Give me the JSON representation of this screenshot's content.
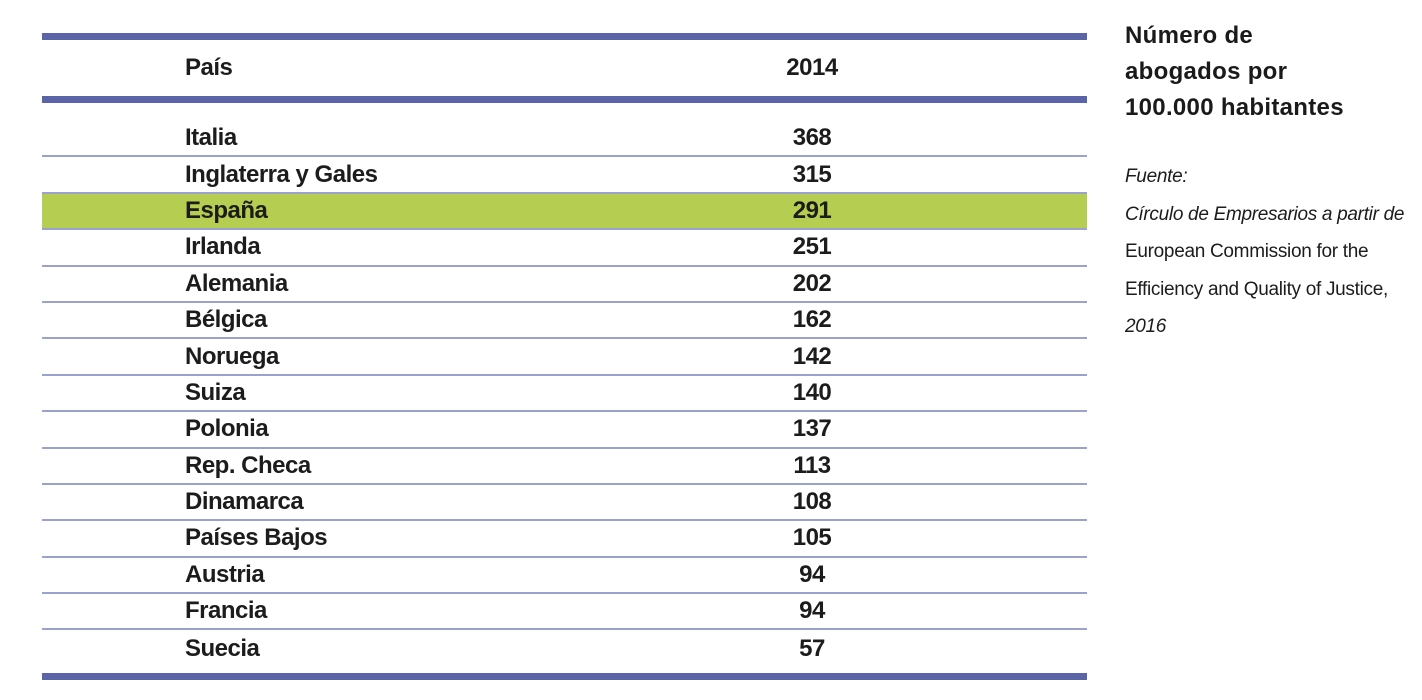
{
  "title": {
    "lines": [
      "Número de",
      "abogados por",
      "100.000 habitantes"
    ],
    "full": "Número de abogados por 100.000 habitantes"
  },
  "source": {
    "lines": [
      {
        "text": "Fuente:",
        "style": "italic"
      },
      {
        "text": "Círculo de Empresarios a partir de",
        "style": "italic"
      },
      {
        "text": "European Commission for the",
        "style": "normal"
      },
      {
        "text": "Efficiency and Quality of Justice,",
        "style": "normal"
      },
      {
        "text": "2016",
        "style": "italic"
      }
    ]
  },
  "table": {
    "columns": [
      "País",
      "2014"
    ],
    "highlight_country": "España",
    "rows": [
      {
        "country": "Italia",
        "value": "368"
      },
      {
        "country": "Inglaterra y Gales",
        "value": "315"
      },
      {
        "country": "España",
        "value": "291"
      },
      {
        "country": "Irlanda",
        "value": "251"
      },
      {
        "country": "Alemania",
        "value": "202"
      },
      {
        "country": "Bélgica",
        "value": "162"
      },
      {
        "country": "Noruega",
        "value": "142"
      },
      {
        "country": "Suiza",
        "value": "140"
      },
      {
        "country": "Polonia",
        "value": "137"
      },
      {
        "country": "Rep. Checa",
        "value": "113"
      },
      {
        "country": "Dinamarca",
        "value": "108"
      },
      {
        "country": "Países Bajos",
        "value": "105"
      },
      {
        "country": "Austria",
        "value": "94"
      },
      {
        "country": "Francia",
        "value": "94"
      },
      {
        "country": "Suecia",
        "value": "57"
      }
    ]
  },
  "chart_data": {
    "type": "table",
    "title": "Número de abogados por 100.000 habitantes",
    "columns": [
      "País",
      "2014"
    ],
    "categories": [
      "Italia",
      "Inglaterra y Gales",
      "España",
      "Irlanda",
      "Alemania",
      "Bélgica",
      "Noruega",
      "Suiza",
      "Polonia",
      "Rep. Checa",
      "Dinamarca",
      "Países Bajos",
      "Austria",
      "Francia",
      "Suecia"
    ],
    "values": [
      368,
      315,
      291,
      251,
      202,
      162,
      142,
      140,
      137,
      113,
      108,
      105,
      94,
      94,
      57
    ],
    "highlight": "España",
    "source": "Fuente: Círculo de Empresarios a partir de European Commission for the Efficiency and Quality of Justice, 2016"
  },
  "colors": {
    "accent_line": "#5A64A6",
    "row_separator": "#9CA2CE",
    "highlight_row": "#B5CD50",
    "text": "#1C1C1C"
  }
}
